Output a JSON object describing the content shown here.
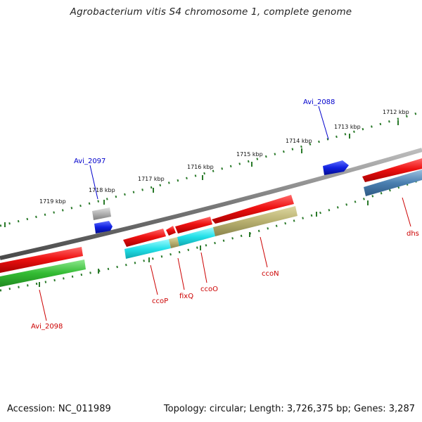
{
  "title": "Agrobacterium vitis S4 chromosome 1, complete genome",
  "footer": {
    "accession": "Accession: NC_011989",
    "summary": "Topology: circular; Length: 3,726,375 bp; Genes: 3,287"
  },
  "scale_labels": [
    "1712 kbp",
    "1713 kbp",
    "1714 kbp",
    "1715 kbp",
    "1716 kbp",
    "1717 kbp",
    "1718 kbp",
    "1719 kbp"
  ],
  "gene_labels": {
    "avi_2097": "Avi_2097",
    "avi_2088": "Avi_2088",
    "avi_2098": "Avi_2098",
    "ccoP": "ccoP",
    "fixQ": "fixQ",
    "ccoO": "ccoO",
    "ccoN": "ccoN",
    "dhs": "dhs"
  },
  "colors": {
    "backbone": "#7a7a7a",
    "cds": "#ee1111",
    "blast_cyan": "#22e0e8",
    "blast_olive": "#b8b070",
    "blast_green": "#33bb33",
    "blast_steel": "#4a7fb0",
    "gene_gray": "#a8a8a8",
    "gene_blue": "#1020e0",
    "scale": "#2a7a2a",
    "label_red": "#cc0000",
    "label_blue": "#0000cc"
  }
}
